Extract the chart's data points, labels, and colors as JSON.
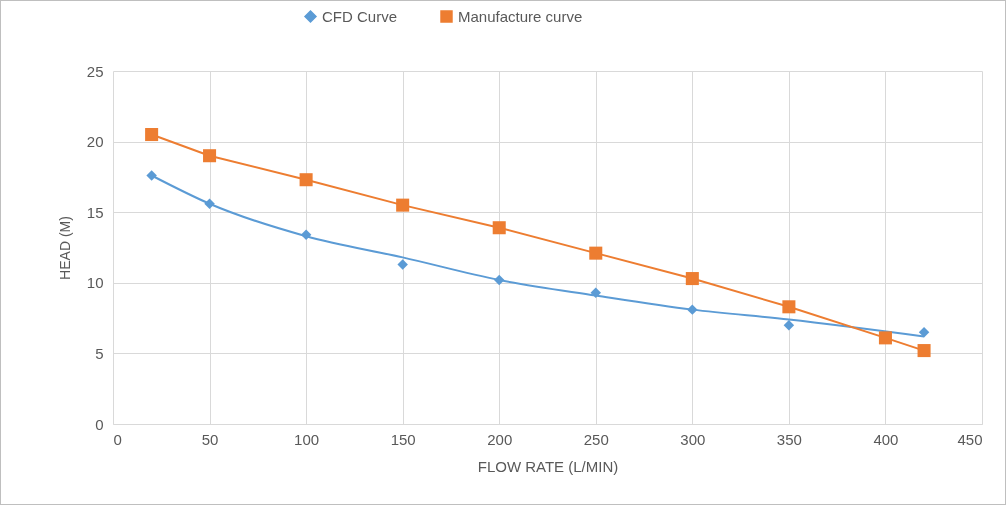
{
  "chart_data": {
    "type": "scatter",
    "xlabel": "FLOW RATE (L/MIN)",
    "ylabel": "HEAD (M)",
    "xlim": [
      0,
      450
    ],
    "xticks": [
      0,
      50,
      100,
      150,
      200,
      250,
      300,
      350,
      400,
      450
    ],
    "ylim": [
      0,
      25
    ],
    "yticks": [
      0,
      5,
      10,
      15,
      20,
      25
    ],
    "grid": true,
    "legend": "top",
    "series": [
      {
        "name": "CFD Curve",
        "marker": "diamond",
        "color": "#5b9bd5",
        "x": [
          20,
          50,
          100,
          150,
          200,
          250,
          300,
          350,
          420
        ],
        "values": [
          17.6,
          15.6,
          13.4,
          11.3,
          10.2,
          9.3,
          8.1,
          7.0,
          6.5
        ]
      },
      {
        "type": "line",
        "marker": "none",
        "color": "#5b9bd5",
        "x": [
          20,
          50,
          100,
          150,
          200,
          250,
          300,
          350,
          420
        ],
        "values": [
          17.6,
          15.6,
          13.3,
          11.8,
          10.2,
          9.1,
          8.1,
          7.4,
          6.2
        ]
      },
      {
        "name": "Manufacture curve",
        "type": "line",
        "marker": "square",
        "color": "#ed7d31",
        "x": [
          20,
          50,
          100,
          150,
          200,
          250,
          300,
          350,
          400,
          420
        ],
        "values": [
          20.5,
          19.0,
          17.3,
          15.5,
          13.9,
          12.1,
          10.3,
          8.3,
          6.1,
          5.2
        ]
      }
    ]
  }
}
